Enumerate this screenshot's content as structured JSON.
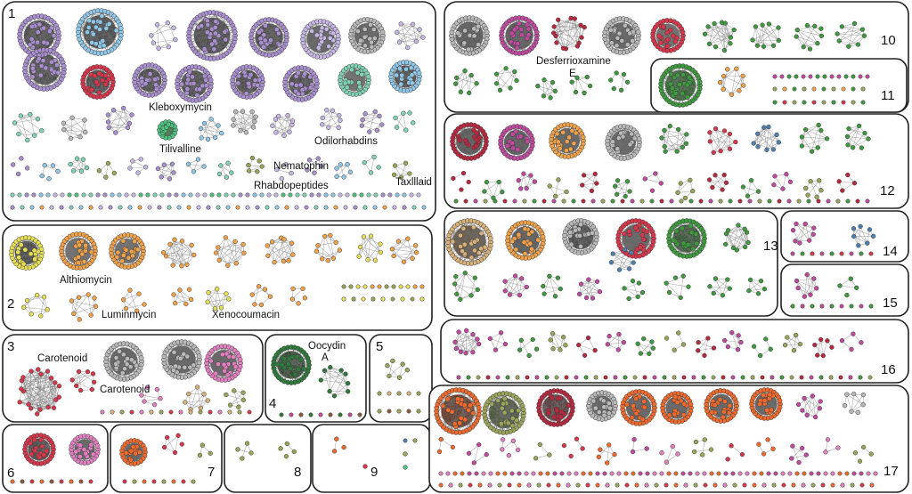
{
  "panels": [
    {
      "id": "p1",
      "number": "1"
    },
    {
      "id": "p2",
      "number": "2"
    },
    {
      "id": "p3",
      "number": "3"
    },
    {
      "id": "p4",
      "number": "4"
    },
    {
      "id": "p5",
      "number": "5"
    },
    {
      "id": "p6",
      "number": "6"
    },
    {
      "id": "p7",
      "number": "7"
    },
    {
      "id": "p8",
      "number": "8"
    },
    {
      "id": "p9",
      "number": "9"
    },
    {
      "id": "p10",
      "number": "10"
    },
    {
      "id": "p11",
      "number": "11"
    },
    {
      "id": "p12",
      "number": "12"
    },
    {
      "id": "p13",
      "number": "13"
    },
    {
      "id": "p14",
      "number": "14"
    },
    {
      "id": "p15",
      "number": "15"
    },
    {
      "id": "p16",
      "number": "16"
    },
    {
      "id": "p17",
      "number": "17"
    }
  ],
  "compound_labels": {
    "kleboxymycin": "Kleboxymycin",
    "tilivalline": "Tilivalline",
    "odilorhabdins": "Odilorhabdins",
    "nematophin": "Nematophin",
    "rhabdopeptides": "Rhabdopeptides",
    "taxlllaid": "Taxlllaid",
    "althiomycin": "Althiomycin",
    "luminmycin": "Luminmycin",
    "xenocoumacin": "Xenocoumacin",
    "carotenoid_a": "Carotenoid",
    "carotenoid_b": "Carotenoid",
    "oocydin_line1": "Oocydin",
    "oocydin_line2": "A",
    "desferrioxamine_line1": "Desferrioxamine",
    "desferrioxamine_line2": "E"
  },
  "colors": {
    "purple": "#a98fd0",
    "lavender": "#c7b6e6",
    "skyblue": "#8fc7e8",
    "teal": "#7fd3b3",
    "mint": "#4fc27f",
    "green": "#3f9a3f",
    "darkgreen": "#2f7a3a",
    "yellow": "#e6df55",
    "orange": "#f0a24a",
    "redorange": "#ef6a2c",
    "red": "#d8364a",
    "crimson": "#b8283e",
    "pink": "#e27fc0",
    "magenta": "#c04aa0",
    "grey": "#b9b9b9",
    "darkgrey": "#6a6a6a",
    "olive": "#9aa55a",
    "brown": "#8c5a3a",
    "tan": "#d8b07a",
    "steelblue": "#4f7fb0"
  }
}
